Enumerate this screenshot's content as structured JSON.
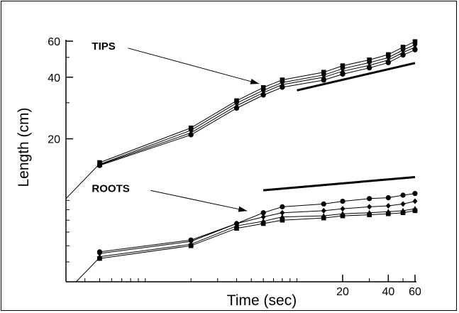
{
  "chart_data": {
    "type": "line",
    "title": "",
    "xlabel": "Time (sec)",
    "ylabel": "Length (cm)",
    "x_scale": "log",
    "y_scale": "log",
    "xlim": [
      0.3,
      60
    ],
    "ylim": [
      4,
      60
    ],
    "x_ticks": [
      {
        "value": 20,
        "label": "20"
      },
      {
        "value": 40,
        "label": "40"
      },
      {
        "value": 60,
        "label": "60"
      }
    ],
    "y_ticks": [
      {
        "value": 20,
        "label": "20"
      },
      {
        "value": 40,
        "label": "40"
      },
      {
        "value": 60,
        "label": "60"
      }
    ],
    "series": [
      {
        "group": "TIPS",
        "marker": "square",
        "x": [
          0.5,
          2,
          4,
          6,
          8,
          15,
          20,
          30,
          40,
          50,
          60
        ],
        "y": [
          15.3,
          22.6,
          30.7,
          35.6,
          38.8,
          42.3,
          45.5,
          48.6,
          51.6,
          56.1,
          59.7
        ]
      },
      {
        "group": "TIPS",
        "marker": "diamond",
        "x": [
          0.5,
          2,
          4,
          6,
          8,
          15,
          20,
          30,
          40,
          50,
          60
        ],
        "y": [
          15.0,
          22.0,
          29.9,
          34.5,
          37.7,
          41.0,
          44.0,
          47.1,
          49.9,
          54.3,
          57.6
        ]
      },
      {
        "group": "TIPS",
        "marker": "triangle",
        "x": [
          0.5,
          2,
          4,
          6,
          8,
          15,
          20,
          30,
          40,
          50,
          60
        ],
        "y": [
          14.9,
          21.4,
          29.0,
          33.6,
          36.8,
          40.0,
          42.8,
          45.7,
          48.5,
          52.8,
          56.1
        ]
      },
      {
        "group": "TIPS",
        "marker": "circle",
        "x": [
          0.5,
          2,
          4,
          6,
          8,
          15,
          20,
          30,
          40,
          50,
          60
        ],
        "y": [
          14.8,
          20.9,
          28.2,
          32.7,
          35.7,
          38.7,
          41.4,
          44.4,
          47.1,
          51.3,
          54.4
        ]
      },
      {
        "group": "ROOTS",
        "marker": "circle",
        "x": [
          0.5,
          2,
          4,
          6,
          8,
          15,
          20,
          30,
          40,
          50,
          60
        ],
        "y": [
          5.6,
          6.4,
          7.7,
          8.7,
          9.3,
          9.6,
          9.9,
          10.2,
          10.3,
          10.6,
          10.8
        ]
      },
      {
        "group": "ROOTS",
        "marker": "diamond",
        "x": [
          0.5,
          2,
          4,
          6,
          8,
          15,
          20,
          30,
          40,
          50,
          60
        ],
        "y": [
          5.5,
          6.3,
          7.7,
          8.3,
          8.7,
          8.9,
          9.1,
          9.3,
          9.4,
          9.6,
          9.9
        ]
      },
      {
        "group": "ROOTS",
        "marker": "triangle",
        "x": [
          0.5,
          2,
          4,
          6,
          8,
          15,
          20,
          30,
          40,
          50,
          60
        ],
        "y": [
          5.3,
          6.1,
          7.5,
          7.9,
          8.3,
          8.4,
          8.6,
          8.7,
          8.8,
          8.9,
          9.1
        ]
      },
      {
        "group": "ROOTS",
        "marker": "square",
        "x": [
          0.5,
          2,
          4,
          6,
          8,
          15,
          20,
          30,
          40,
          50,
          60
        ],
        "y": [
          5.2,
          6.0,
          7.3,
          7.7,
          8.0,
          8.2,
          8.4,
          8.5,
          8.6,
          8.7,
          8.9
        ]
      }
    ],
    "reference_lines": [
      {
        "name": "tips-slope-line",
        "x": [
          10,
          60
        ],
        "y": [
          34.5,
          46.9
        ]
      },
      {
        "name": "roots-slope-line",
        "x": [
          6,
          60
        ],
        "y": [
          11.2,
          13.0
        ]
      }
    ],
    "fit_lines": [
      {
        "name": "tips-fit-line",
        "x": [
          0.3,
          0.5
        ],
        "y": [
          10.2,
          15.1
        ]
      },
      {
        "name": "roots-fit-line",
        "x": [
          0.35,
          0.5
        ],
        "y": [
          4.0,
          5.25
        ]
      }
    ],
    "annotations": [
      {
        "text": "TIPS",
        "x": 0.5,
        "y": 54.6,
        "arrow_to": [
          6,
          36.0
        ]
      },
      {
        "text": "ROOTS",
        "x": 0.5,
        "y": 11.0,
        "arrow_to": [
          5,
          8.6
        ]
      }
    ],
    "grid": false,
    "legend": "none"
  }
}
